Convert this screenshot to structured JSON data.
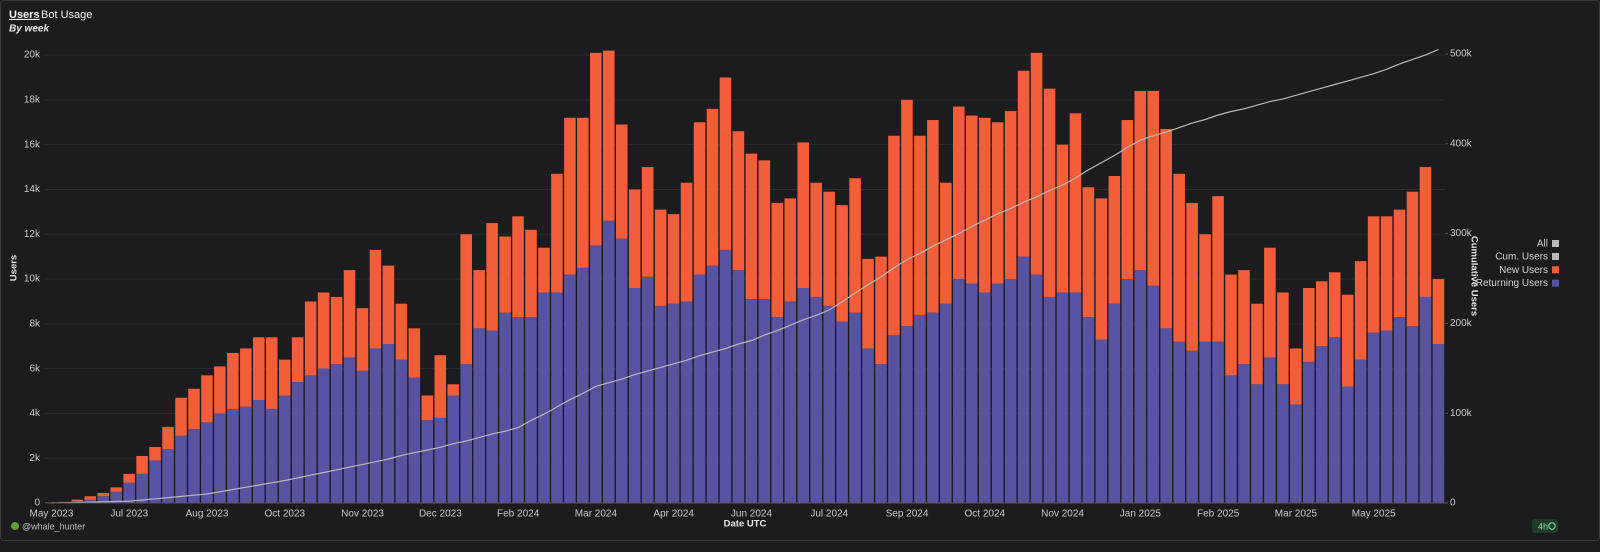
{
  "tabs": [
    "Users",
    "Bot Usage"
  ],
  "footer": {
    "user": "@whale_hunter",
    "refresh": "4h"
  },
  "chart_data": {
    "type": "bar",
    "stacked": true,
    "subtitle": "By week",
    "x_label": "Date UTC",
    "y_label": "Users",
    "y2_label": "Cumulative Users",
    "legend_all": "All",
    "legend": "right",
    "grid": true,
    "categories": [
      "May 2023",
      null,
      null,
      null,
      null,
      null,
      "Jul 2023",
      null,
      null,
      null,
      null,
      null,
      "Aug 2023",
      null,
      null,
      null,
      null,
      null,
      "Oct 2023",
      null,
      null,
      null,
      null,
      null,
      "Nov 2023",
      null,
      null,
      null,
      null,
      null,
      "Dec 2023",
      null,
      null,
      null,
      null,
      null,
      "Feb 2024",
      null,
      null,
      null,
      null,
      null,
      "Mar 2024",
      null,
      null,
      null,
      null,
      null,
      "Apr 2024",
      null,
      null,
      null,
      null,
      null,
      "Jun 2024",
      null,
      null,
      null,
      null,
      null,
      "Jul 2024",
      null,
      null,
      null,
      null,
      null,
      "Sep 2024",
      null,
      null,
      null,
      null,
      null,
      "Oct 2024",
      null,
      null,
      null,
      null,
      null,
      "Nov 2024",
      null,
      null,
      null,
      null,
      null,
      "Jan 2025",
      null,
      null,
      null,
      null,
      null,
      "Feb 2025",
      null,
      null,
      null,
      null,
      null,
      "Mar 2025",
      null,
      null,
      null,
      null,
      null,
      "May 2025",
      null,
      null,
      null,
      null,
      null
    ],
    "series": [
      {
        "name": "Cum. Users",
        "type": "line",
        "axis": "y2",
        "color": "#b9b9b9",
        "values": [
          0,
          300,
          700,
          1000,
          1300,
          1700,
          2000,
          3300,
          4700,
          6000,
          7300,
          8700,
          10000,
          12500,
          15000,
          17500,
          20000,
          22500,
          25000,
          28000,
          31000,
          34000,
          37000,
          40000,
          43000,
          46000,
          49000,
          53000,
          56000,
          59000,
          62000,
          66000,
          69000,
          73000,
          77000,
          80000,
          84000,
          92000,
          99000,
          107000,
          115000,
          122000,
          130000,
          134000,
          138000,
          143000,
          147000,
          151000,
          155000,
          159000,
          164000,
          168000,
          172000,
          177000,
          181000,
          187000,
          192000,
          198000,
          204000,
          209000,
          215000,
          224000,
          234000,
          243000,
          252000,
          262000,
          271000,
          278000,
          286000,
          293000,
          300000,
          308000,
          315000,
          322000,
          328000,
          335000,
          341000,
          348000,
          354000,
          362000,
          371000,
          379000,
          387000,
          396000,
          404000,
          409000,
          413000,
          418000,
          423000,
          427000,
          432000,
          436000,
          439000,
          443000,
          447000,
          450000,
          454000,
          458000,
          462000,
          466000,
          470000,
          474000,
          478000,
          483000,
          489000,
          494000,
          499000,
          505000
        ]
      },
      {
        "name": "New Users",
        "color": "#f25d3a",
        "values": [
          10,
          20,
          70,
          150,
          150,
          200,
          400,
          800,
          600,
          1000,
          1700,
          1800,
          2100,
          2100,
          2500,
          2600,
          2800,
          3200,
          1600,
          2000,
          3300,
          3400,
          3000,
          3900,
          2800,
          4400,
          3500,
          2500,
          2200,
          1100,
          2800,
          500,
          5800,
          2600,
          4800,
          3400,
          4500,
          3900,
          2000,
          5300,
          7000,
          6700,
          8600,
          7600,
          5100,
          4400,
          4900,
          4300,
          4000,
          5300,
          6800,
          7000,
          7700,
          6200,
          6500,
          6200,
          5100,
          4600,
          6500,
          5100,
          5100,
          5200,
          6000,
          4000,
          4800,
          8900,
          10100,
          8000,
          8600,
          5400,
          7700,
          7500,
          7800,
          7200,
          7500,
          8300,
          9900,
          9300,
          6600,
          8000,
          5800,
          6300,
          5700,
          7100,
          8000,
          8700,
          8900,
          7500,
          6600,
          4800,
          6500,
          4500,
          4200,
          3600,
          4900,
          4100,
          2500,
          3300,
          2900,
          2900,
          4100,
          4400,
          5200,
          5100,
          4800,
          6000,
          5800,
          2900
        ]
      },
      {
        "name": "Returning Users",
        "color": "#5753a1",
        "values": [
          20,
          30,
          80,
          150,
          300,
          500,
          900,
          1300,
          1900,
          2400,
          3000,
          3300,
          3600,
          4000,
          4200,
          4300,
          4600,
          4200,
          4800,
          5400,
          5700,
          6000,
          6200,
          6500,
          5900,
          6900,
          7100,
          6400,
          5600,
          3700,
          3800,
          4800,
          6200,
          7800,
          7700,
          8500,
          8300,
          8300,
          9400,
          9400,
          10200,
          10500,
          11500,
          12600,
          11800,
          9600,
          10100,
          8800,
          8900,
          9000,
          10200,
          10600,
          11300,
          10400,
          9100,
          9100,
          8300,
          9000,
          9600,
          9200,
          8800,
          8100,
          8500,
          6900,
          6200,
          7500,
          7900,
          8400,
          8500,
          8900,
          10000,
          9800,
          9400,
          9800,
          10000,
          11000,
          10200,
          9200,
          9400,
          9400,
          8300,
          7300,
          8900,
          10000,
          10400,
          9700,
          7800,
          7200,
          6800,
          7200,
          7200,
          5700,
          6200,
          5300,
          6500,
          5300,
          4400,
          6300,
          7000,
          7400,
          5200,
          6400,
          7600,
          7700,
          8300,
          7900,
          9200,
          7100
        ]
      }
    ],
    "ylim": [
      0,
      20450
    ],
    "yticks": [
      0,
      {
        "value": 2000,
        "label": "2k"
      },
      {
        "value": 4000,
        "label": "4k"
      },
      {
        "value": 6000,
        "label": "6k"
      },
      {
        "value": 8000,
        "label": "8k"
      },
      {
        "value": 10000,
        "label": "10k"
      },
      {
        "value": 12000,
        "label": "12k"
      },
      {
        "value": 14000,
        "label": "14k"
      },
      {
        "value": 16000,
        "label": "16k"
      },
      {
        "value": 18000,
        "label": "18k"
      },
      {
        "value": 20000,
        "label": "20k"
      }
    ],
    "y2lim": [
      0,
      510000
    ],
    "y2ticks": [
      0,
      {
        "value": 100000,
        "label": "100k"
      },
      {
        "value": 200000,
        "label": "200k"
      },
      {
        "value": 300000,
        "label": "300k"
      },
      {
        "value": 400000,
        "label": "400k"
      },
      {
        "value": 500000,
        "label": "500k"
      }
    ]
  }
}
